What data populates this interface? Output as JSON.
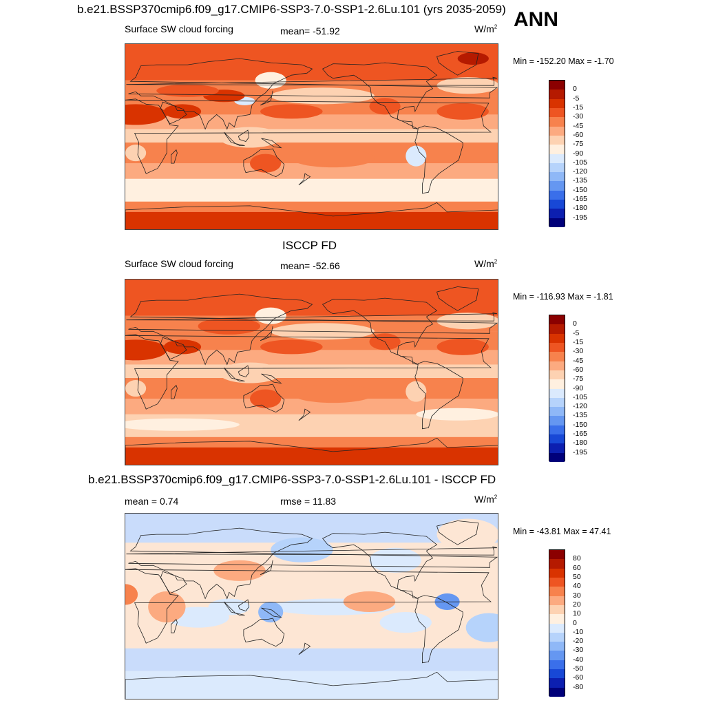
{
  "header": {
    "title": "b.e21.BSSP370cmip6.f09_g17.CMIP6-SSP3-7.0-SSP1-2.6Lu.101 (yrs 2035-2059)",
    "season": "ANN"
  },
  "panels": [
    {
      "id": "model",
      "top_title": "",
      "variable": "Surface SW cloud forcing",
      "stat1": "mean= -51.92",
      "stat2": "",
      "units": "W/m",
      "units_exp": "2",
      "minmax": "Min = -152.20 Max =  -1.70",
      "colorbar": {
        "labels": [
          "0",
          "-5",
          "-15",
          "-30",
          "-45",
          "-60",
          "-75",
          "-90",
          "-105",
          "-120",
          "-135",
          "-150",
          "-165",
          "-180",
          "-195"
        ],
        "colors": [
          "#8b0000",
          "#b51a00",
          "#d93300",
          "#ee5522",
          "#f7824d",
          "#fcaa80",
          "#fdd2b2",
          "#fff0e0",
          "#dbeafd",
          "#b6d3fb",
          "#8fb8f7",
          "#6597f1",
          "#3a6fea",
          "#1848d6",
          "#0c1fb0",
          "#00007a"
        ]
      },
      "map_style": "model"
    },
    {
      "id": "obs",
      "top_title": "ISCCP FD",
      "variable": "Surface SW cloud forcing",
      "stat1": "mean= -52.66",
      "stat2": "",
      "units": "W/m",
      "units_exp": "2",
      "minmax": "Min = -116.93 Max =  -1.81",
      "colorbar": {
        "labels": [
          "0",
          "-5",
          "-15",
          "-30",
          "-45",
          "-60",
          "-75",
          "-90",
          "-105",
          "-120",
          "-135",
          "-150",
          "-165",
          "-180",
          "-195"
        ],
        "colors": [
          "#8b0000",
          "#b51a00",
          "#d93300",
          "#ee5522",
          "#f7824d",
          "#fcaa80",
          "#fdd2b2",
          "#fff0e0",
          "#dbeafd",
          "#b6d3fb",
          "#8fb8f7",
          "#6597f1",
          "#3a6fea",
          "#1848d6",
          "#0c1fb0",
          "#00007a"
        ]
      },
      "map_style": "obs"
    },
    {
      "id": "diff",
      "top_title": "b.e21.BSSP370cmip6.f09_g17.CMIP6-SSP3-7.0-SSP1-2.6Lu.101 - ISCCP FD",
      "variable": "",
      "stat1": "mean =   0.74",
      "stat2": "rmse =  11.83",
      "units": "W/m",
      "units_exp": "2",
      "minmax": "Min = -43.81 Max =  47.41",
      "colorbar": {
        "labels": [
          "80",
          "60",
          "50",
          "40",
          "30",
          "20",
          "10",
          "0",
          "-10",
          "-20",
          "-30",
          "-40",
          "-50",
          "-60",
          "-80"
        ],
        "colors": [
          "#8b0000",
          "#b51a00",
          "#d93300",
          "#ee5522",
          "#f7824d",
          "#fcaa80",
          "#fdd2b2",
          "#fff0e0",
          "#dbeafd",
          "#b6d3fb",
          "#8fb8f7",
          "#6597f1",
          "#3a6fea",
          "#1848d6",
          "#0c1fb0",
          "#00007a"
        ]
      },
      "map_style": "diff"
    }
  ]
}
